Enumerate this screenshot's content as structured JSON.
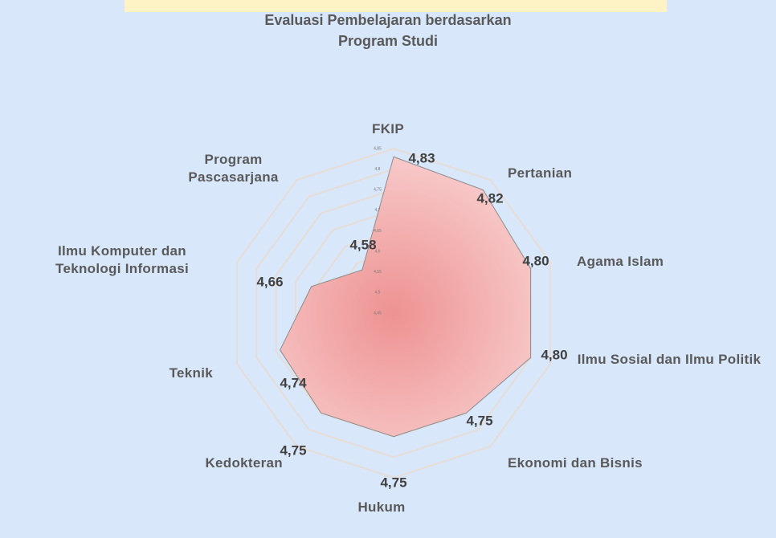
{
  "chart_data": {
    "type": "radar",
    "title": "Evaluasi Pembelajaran berdasarkan Program Studi",
    "categories": [
      "FKIP",
      "Pertanian",
      "Agama Islam",
      "Ilmu Sosial dan Ilmu Politik",
      "Ekonomi dan Bisnis",
      "Hukum",
      "Kedokteran",
      "Teknik",
      "Ilmu Komputer dan Teknologi Informasi",
      "Program Pascasarjana"
    ],
    "values": [
      4.83,
      4.82,
      4.8,
      4.8,
      4.75,
      4.75,
      4.75,
      4.74,
      4.66,
      4.58
    ],
    "value_labels": [
      "4,83",
      "4,82",
      "4,80",
      "4,80",
      "4,75",
      "4,75",
      "4,75",
      "4,74",
      "4,66",
      "4,58"
    ],
    "color": "#f4a6a6",
    "rlim": [
      4.45,
      4.85
    ],
    "rticks": [
      {
        "value": 4.45,
        "label": "4,45"
      },
      {
        "value": 4.5,
        "label": "4,5"
      },
      {
        "value": 4.55,
        "label": "4,55"
      },
      {
        "value": 4.6,
        "label": "4,6"
      },
      {
        "value": 4.65,
        "label": "4,65"
      },
      {
        "value": 4.7,
        "label": "4,7"
      },
      {
        "value": 4.75,
        "label": "4,75"
      },
      {
        "value": 4.8,
        "label": "4,8"
      },
      {
        "value": 4.85,
        "label": "4,85"
      }
    ],
    "grid": true
  }
}
